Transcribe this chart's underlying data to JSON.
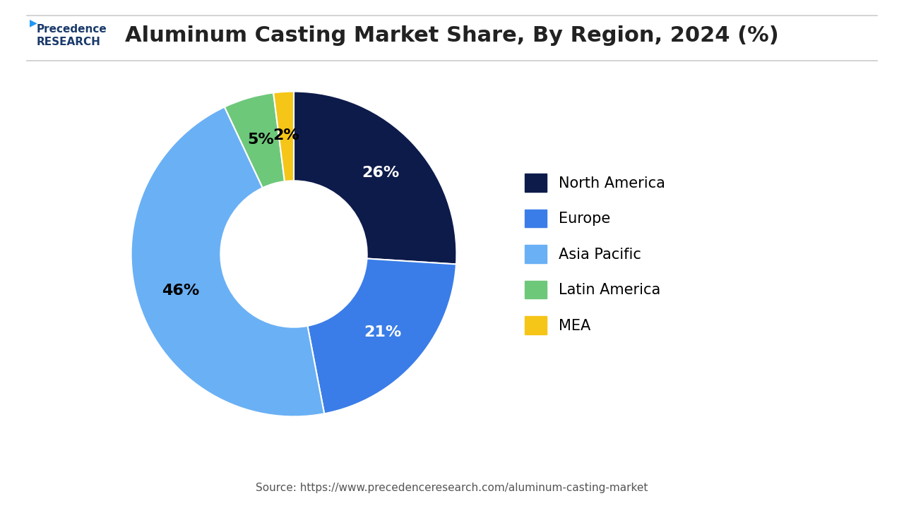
{
  "title": "Aluminum Casting Market Share, By Region, 2024 (%)",
  "labels": [
    "North America",
    "Europe",
    "Asia Pacific",
    "Latin America",
    "MEA"
  ],
  "values": [
    26,
    21,
    46,
    5,
    2
  ],
  "colors": [
    "#0d1b4b",
    "#3a7de8",
    "#6ab0f5",
    "#6dc87a",
    "#f5c518"
  ],
  "pct_labels": [
    "26%",
    "21%",
    "46%",
    "5%",
    "2%"
  ],
  "source_text": "Source: https://www.precedenceresearch.com/aluminum-casting-market",
  "background_color": "#ffffff",
  "title_fontsize": 22,
  "legend_fontsize": 15,
  "pct_fontsize": 16
}
